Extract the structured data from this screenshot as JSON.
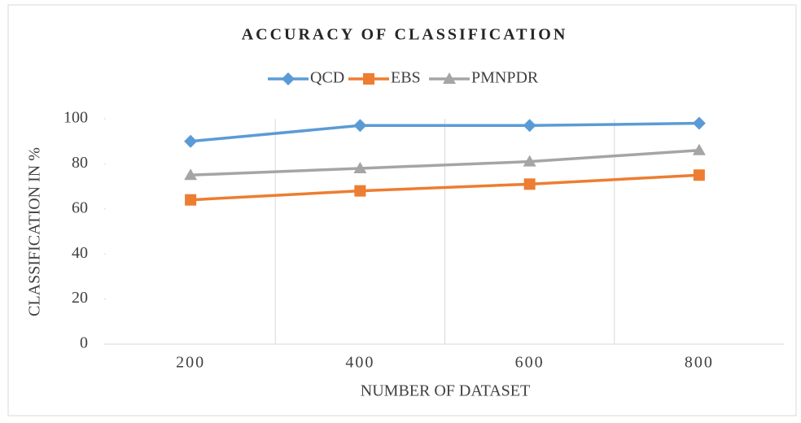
{
  "chart_data": {
    "type": "line",
    "title": "ACCURACY OF CLASSIFICATION",
    "x_label": "NUMBER OF DATASET",
    "y_label": "CLASSIFICATION IN %",
    "categories": [
      "200",
      "400",
      "600",
      "800"
    ],
    "series": [
      {
        "name": "QCD",
        "color": "#5b9bd5",
        "marker": "diamond",
        "values": [
          90,
          97,
          97,
          98
        ]
      },
      {
        "name": "EBS",
        "color": "#ed7d31",
        "marker": "square",
        "values": [
          64,
          68,
          71,
          75
        ]
      },
      {
        "name": "PMNPDR",
        "color": "#a5a5a5",
        "marker": "triangle",
        "values": [
          75,
          78,
          81,
          86
        ]
      }
    ],
    "ylim": [
      0,
      100
    ],
    "yticks": [
      0,
      20,
      40,
      60,
      80,
      100
    ],
    "category_grid": true,
    "legend": "top"
  }
}
